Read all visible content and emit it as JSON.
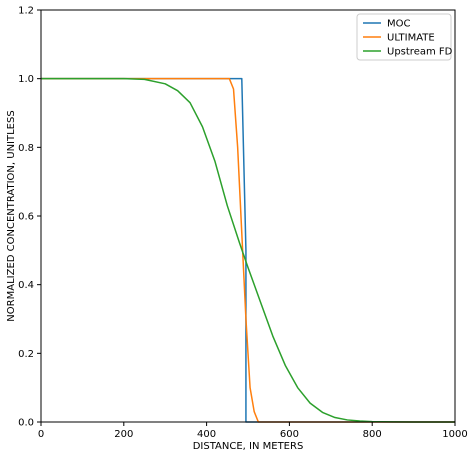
{
  "chart_data": {
    "type": "line",
    "title": "",
    "xlabel": "DISTANCE, IN METERS",
    "ylabel": "NORMALIZED CONCENTRATION, UNITLESS",
    "xlim": [
      0,
      1000
    ],
    "ylim": [
      0,
      1.2
    ],
    "xticks": [
      0,
      200,
      400,
      600,
      800,
      1000
    ],
    "xtick_labels": [
      "0",
      "200",
      "400",
      "600",
      "800",
      "1000"
    ],
    "yticks": [
      0,
      0.2,
      0.4,
      0.6,
      0.8,
      1.0,
      1.2
    ],
    "ytick_labels": [
      "0.0",
      "0.2",
      "0.4",
      "0.6",
      "0.8",
      "1.0",
      "1.2"
    ],
    "grid": false,
    "legend_position": "top-right",
    "series": [
      {
        "name": "MOC",
        "color": "#1f77b4",
        "x": [
          0,
          485,
          485,
          495,
          495,
          1000
        ],
        "y": [
          1.0,
          1.0,
          1.0,
          0.5,
          0.0,
          0.0
        ]
      },
      {
        "name": "ULTIMATE",
        "color": "#ff7f0e",
        "x": [
          0,
          455,
          465,
          475,
          485,
          495,
          505,
          515,
          525,
          1000
        ],
        "y": [
          1.0,
          1.0,
          0.97,
          0.8,
          0.55,
          0.3,
          0.1,
          0.03,
          0.0,
          0.0
        ]
      },
      {
        "name": "Upstream FD",
        "color": "#2ca02c",
        "x": [
          0,
          100,
          200,
          250,
          300,
          330,
          360,
          390,
          420,
          450,
          480,
          500,
          530,
          560,
          590,
          620,
          650,
          680,
          710,
          740,
          770,
          800,
          850,
          900,
          1000
        ],
        "y": [
          1.0,
          1.0,
          1.0,
          0.998,
          0.985,
          0.965,
          0.93,
          0.86,
          0.76,
          0.63,
          0.52,
          0.45,
          0.35,
          0.25,
          0.165,
          0.1,
          0.055,
          0.028,
          0.013,
          0.006,
          0.003,
          0.001,
          0.0003,
          0.0,
          0.0
        ]
      }
    ]
  }
}
